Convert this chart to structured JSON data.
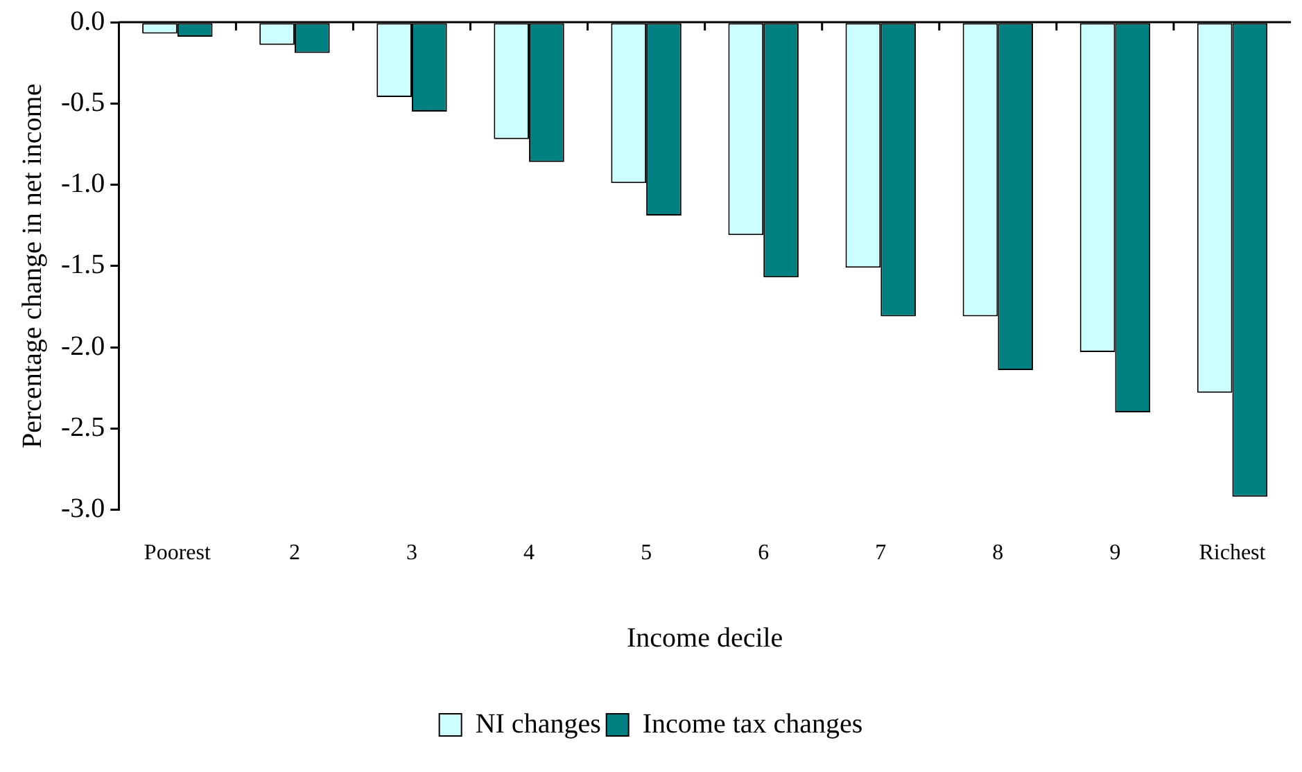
{
  "chart_data": {
    "type": "bar",
    "xlabel": "Income decile",
    "ylabel": "Percentage change in net income",
    "categories": [
      "Poorest",
      "2",
      "3",
      "4",
      "5",
      "6",
      "7",
      "8",
      "9",
      "Richest"
    ],
    "series": [
      {
        "name": "NI changes",
        "color": "#ccffff",
        "values": [
          -0.07,
          -0.14,
          -0.46,
          -0.72,
          -0.99,
          -1.31,
          -1.51,
          -1.81,
          -2.03,
          -2.28
        ]
      },
      {
        "name": "Income tax changes",
        "color": "#008080",
        "values": [
          -0.09,
          -0.19,
          -0.55,
          -0.86,
          -1.19,
          -1.57,
          -1.81,
          -2.14,
          -2.4,
          -2.92
        ]
      }
    ],
    "ylim": [
      -3,
      0
    ],
    "yticks": [
      {
        "value": 0,
        "label": "0.0"
      },
      {
        "value": -0.5,
        "label": "-0.5"
      },
      {
        "value": -1,
        "label": "-1.0"
      },
      {
        "value": -1.5,
        "label": "-1.5"
      },
      {
        "value": -2,
        "label": "-2.0"
      },
      {
        "value": -2.5,
        "label": "-2.5"
      },
      {
        "value": -3,
        "label": "-3.0"
      }
    ],
    "grid": false,
    "legend": "bottom"
  }
}
